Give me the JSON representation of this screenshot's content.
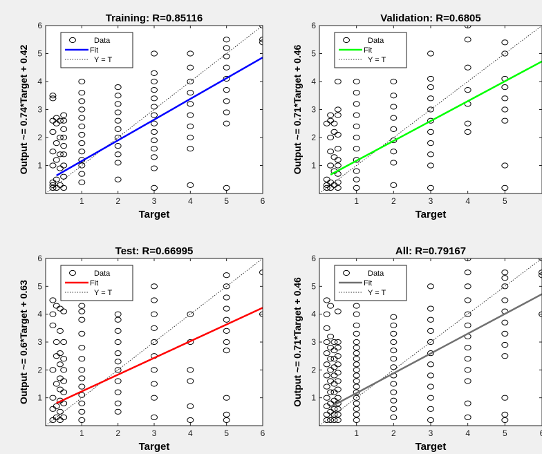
{
  "figure": {
    "background": "#f0f0f0"
  },
  "chart_data": [
    {
      "type": "scatter",
      "title": "Training: R=0.85116",
      "xlabel": "Target",
      "ylabel": "Output ~= 0.74*Target + 0.42",
      "xlim": [
        0,
        6
      ],
      "ylim": [
        0,
        6
      ],
      "xticks": [
        1,
        2,
        3,
        4,
        5,
        6
      ],
      "yticks": [
        1,
        2,
        3,
        4,
        5,
        6
      ],
      "grid": false,
      "legend": {
        "position": "top-left",
        "entries": [
          "Data",
          "Fit",
          "Y = T"
        ]
      },
      "fit": {
        "slope": 0.74,
        "intercept": 0.42,
        "color": "#0000ff"
      },
      "data_columns": [
        {
          "x": 0.2,
          "y": [
            0.2,
            0.3,
            0.4,
            1.0,
            1.5,
            2.2,
            2.6,
            3.4,
            3.5
          ]
        },
        {
          "x": 0.3,
          "y": [
            0.2,
            0.5,
            1.2,
            1.8,
            2.5,
            2.7
          ]
        },
        {
          "x": 0.4,
          "y": [
            0.3,
            0.9,
            1.4,
            2.0,
            2.6
          ]
        },
        {
          "x": 0.5,
          "y": [
            0.2,
            0.6,
            1.0,
            1.4,
            1.7,
            2.0,
            2.3,
            2.6,
            2.8
          ]
        },
        {
          "x": 1,
          "y": [
            0.4,
            0.7,
            1.0,
            1.2,
            1.5,
            1.8,
            2.1,
            2.4,
            2.7,
            3.0,
            3.3,
            3.6,
            4.0
          ]
        },
        {
          "x": 2,
          "y": [
            0.5,
            1.1,
            1.4,
            1.7,
            2.0,
            2.3,
            2.6,
            2.9,
            3.2,
            3.5,
            3.8
          ]
        },
        {
          "x": 3,
          "y": [
            0.2,
            0.9,
            1.3,
            1.6,
            1.9,
            2.2,
            2.5,
            2.8,
            3.1,
            3.4,
            3.7,
            4.0,
            4.3,
            5.0
          ]
        },
        {
          "x": 4,
          "y": [
            0.3,
            1.6,
            2.0,
            2.4,
            2.8,
            3.2,
            3.6,
            4.0,
            4.5,
            5.0
          ]
        },
        {
          "x": 5,
          "y": [
            0.2,
            2.5,
            2.9,
            3.3,
            3.7,
            4.1,
            4.5,
            4.9,
            5.2,
            5.5
          ]
        },
        {
          "x": 6,
          "y": [
            5.4,
            5.5,
            6.0
          ]
        }
      ]
    },
    {
      "type": "scatter",
      "title": "Validation: R=0.6805",
      "xlabel": "Target",
      "ylabel": "Output ~= 0.71*Target + 0.46",
      "xlim": [
        0,
        6
      ],
      "ylim": [
        0,
        6
      ],
      "xticks": [
        1,
        2,
        3,
        4,
        5
      ],
      "yticks": [
        1,
        2,
        3,
        4,
        5,
        6
      ],
      "grid": false,
      "legend": {
        "position": "top-left",
        "entries": [
          "Data",
          "Fit",
          "Y = T"
        ]
      },
      "fit": {
        "slope": 0.71,
        "intercept": 0.46,
        "color": "#00ff00"
      },
      "data_columns": [
        {
          "x": 0.2,
          "y": [
            0.2,
            0.3,
            0.5,
            2.5
          ]
        },
        {
          "x": 0.3,
          "y": [
            0.2,
            0.4,
            1.0,
            1.5,
            2.0,
            2.6,
            2.8
          ]
        },
        {
          "x": 0.4,
          "y": [
            0.3,
            0.8,
            1.3,
            2.2,
            2.5
          ]
        },
        {
          "x": 0.5,
          "y": [
            0.2,
            0.4,
            0.7,
            1.0,
            1.2,
            1.6,
            2.1,
            2.8,
            3.0,
            4.0
          ]
        },
        {
          "x": 1,
          "y": [
            0.2,
            0.5,
            0.8,
            1.2,
            1.6,
            2.0,
            2.4,
            2.8,
            3.2,
            3.6,
            4.0
          ]
        },
        {
          "x": 2,
          "y": [
            0.3,
            1.1,
            1.5,
            1.9,
            2.3,
            2.7,
            3.1,
            3.5,
            4.0
          ]
        },
        {
          "x": 3,
          "y": [
            0.2,
            1.0,
            1.4,
            1.8,
            2.2,
            2.6,
            3.0,
            3.4,
            3.8,
            4.1,
            5.0
          ]
        },
        {
          "x": 4,
          "y": [
            2.2,
            2.5,
            3.2,
            3.7,
            4.5,
            5.5,
            6.0
          ]
        },
        {
          "x": 5,
          "y": [
            0.2,
            1.0,
            2.6,
            3.0,
            3.4,
            3.8,
            4.1,
            5.0,
            5.4
          ]
        }
      ]
    },
    {
      "type": "scatter",
      "title": "Test: R=0.66995",
      "xlabel": "Target",
      "ylabel": "Output ~= 0.6*Target + 0.63",
      "xlim": [
        0,
        6
      ],
      "ylim": [
        0,
        6
      ],
      "xticks": [
        1,
        2,
        3,
        4,
        5,
        6
      ],
      "yticks": [
        1,
        2,
        3,
        4,
        5,
        6
      ],
      "grid": false,
      "legend": {
        "position": "top-left",
        "entries": [
          "Data",
          "Fit",
          "Y = T"
        ]
      },
      "fit": {
        "slope": 0.6,
        "intercept": 0.63,
        "color": "#ff0000"
      },
      "data_columns": [
        {
          "x": 0.2,
          "y": [
            0.2,
            0.6,
            1.0,
            2.0,
            3.6,
            4.0,
            4.5
          ]
        },
        {
          "x": 0.3,
          "y": [
            0.3,
            0.7,
            1.5,
            2.5,
            3.0,
            4.3
          ]
        },
        {
          "x": 0.4,
          "y": [
            0.2,
            0.5,
            0.9,
            1.3,
            1.7,
            2.2,
            2.6,
            3.4,
            4.2
          ]
        },
        {
          "x": 0.5,
          "y": [
            0.3,
            0.8,
            1.2,
            1.6,
            2.0,
            2.4,
            3.0,
            4.1
          ]
        },
        {
          "x": 1,
          "y": [
            0.2,
            0.5,
            0.8,
            1.1,
            1.4,
            1.7,
            2.0,
            2.4,
            2.8,
            3.3,
            3.8,
            4.1,
            4.3
          ]
        },
        {
          "x": 2,
          "y": [
            0.5,
            0.8,
            1.2,
            1.6,
            2.0,
            2.3,
            2.6,
            3.0,
            3.4,
            3.8,
            4.0
          ]
        },
        {
          "x": 3,
          "y": [
            0.3,
            1.0,
            1.5,
            2.0,
            2.5,
            3.0,
            3.5,
            4.0,
            4.5,
            5.0
          ]
        },
        {
          "x": 4,
          "y": [
            0.2,
            0.7,
            1.6,
            2.0,
            3.0,
            4.0
          ]
        },
        {
          "x": 5,
          "y": [
            0.2,
            0.4,
            1.0,
            2.7,
            3.0,
            3.4,
            3.8,
            4.2,
            4.6,
            5.0,
            5.4
          ]
        },
        {
          "x": 6,
          "y": [
            4.0,
            5.5
          ]
        }
      ]
    },
    {
      "type": "scatter",
      "title": "All: R=0.79167",
      "xlabel": "Target",
      "ylabel": "Output ~= 0.71*Target + 0.46",
      "xlim": [
        0,
        6
      ],
      "ylim": [
        0,
        6
      ],
      "xticks": [
        1,
        2,
        3,
        4,
        5,
        6
      ],
      "yticks": [
        1,
        2,
        3,
        4,
        5,
        6
      ],
      "grid": false,
      "legend": {
        "position": "top-left",
        "entries": [
          "Data",
          "Fit",
          "Y = T"
        ]
      },
      "fit": {
        "slope": 0.71,
        "intercept": 0.46,
        "color": "#707070"
      },
      "data_columns": [
        {
          "x": 0.2,
          "y": [
            0.2,
            0.4,
            0.7,
            1.0,
            1.4,
            1.8,
            2.2,
            2.6,
            3.0,
            3.5,
            4.0,
            4.5
          ]
        },
        {
          "x": 0.3,
          "y": [
            0.2,
            0.5,
            0.8,
            1.2,
            1.6,
            2.0,
            2.4,
            2.8,
            3.2,
            4.3
          ]
        },
        {
          "x": 0.4,
          "y": [
            0.2,
            0.4,
            0.6,
            0.9,
            1.2,
            1.5,
            1.8,
            2.1,
            2.4,
            2.7,
            3.0
          ]
        },
        {
          "x": 0.5,
          "y": [
            0.2,
            0.4,
            0.6,
            0.8,
            1.0,
            1.3,
            1.6,
            1.9,
            2.2,
            2.5,
            2.8,
            3.0,
            4.1
          ]
        },
        {
          "x": 1,
          "y": [
            0.2,
            0.4,
            0.6,
            0.8,
            1.0,
            1.2,
            1.4,
            1.6,
            1.8,
            2.0,
            2.2,
            2.4,
            2.6,
            2.8,
            3.0,
            3.3,
            3.6,
            4.0,
            4.3
          ]
        },
        {
          "x": 2,
          "y": [
            0.3,
            0.6,
            0.9,
            1.2,
            1.5,
            1.8,
            2.1,
            2.4,
            2.7,
            3.0,
            3.3,
            3.6,
            3.9
          ]
        },
        {
          "x": 3,
          "y": [
            0.2,
            0.6,
            1.0,
            1.4,
            1.8,
            2.2,
            2.6,
            3.0,
            3.4,
            3.8,
            4.2,
            5.0
          ]
        },
        {
          "x": 4,
          "y": [
            0.3,
            0.8,
            1.6,
            2.0,
            2.4,
            2.8,
            3.2,
            3.6,
            4.0,
            4.5,
            5.0,
            5.5,
            6.0
          ]
        },
        {
          "x": 5,
          "y": [
            0.2,
            0.4,
            1.0,
            2.5,
            2.9,
            3.3,
            3.7,
            4.1,
            4.5,
            5.0,
            5.3,
            5.5
          ]
        },
        {
          "x": 6,
          "y": [
            4.0,
            5.4,
            5.5,
            6.0
          ]
        }
      ]
    }
  ]
}
